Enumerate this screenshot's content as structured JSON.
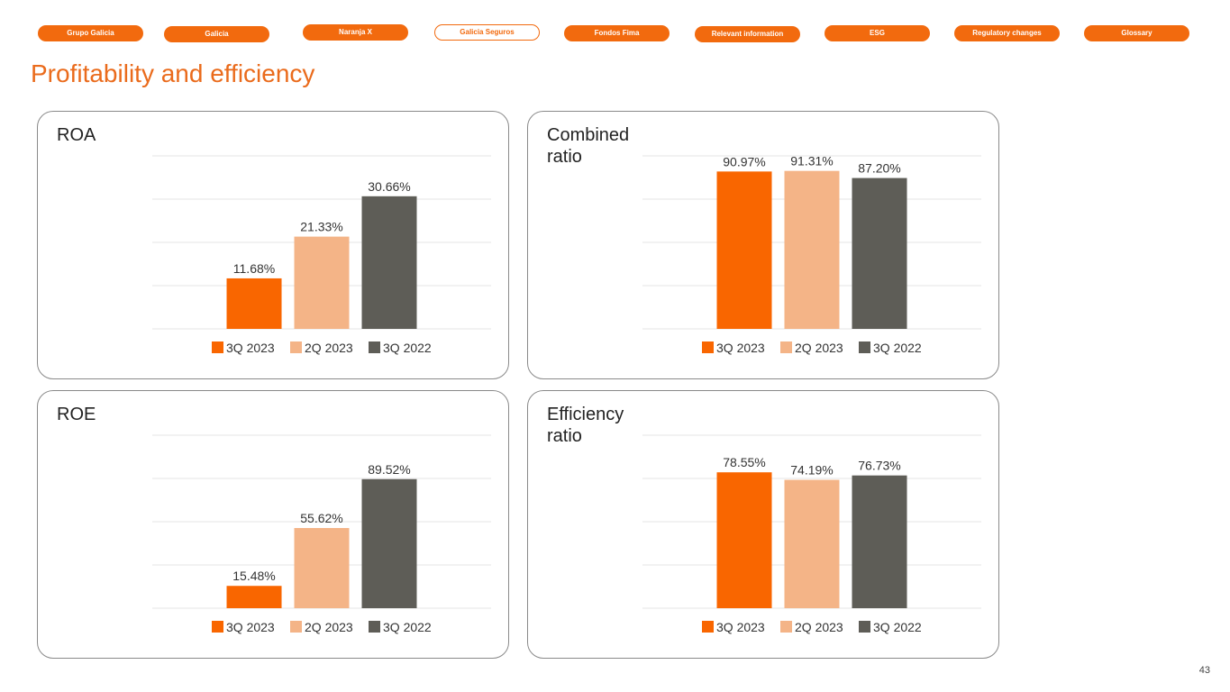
{
  "nav": {
    "items": [
      {
        "label": "Grupo Galicia",
        "active": false
      },
      {
        "label": "Galicia",
        "active": false
      },
      {
        "label": "Naranja X",
        "active": false
      },
      {
        "label": "Galicia Seguros",
        "active": true
      },
      {
        "label": "Fondos Fima",
        "active": false
      },
      {
        "label": "Relevant information",
        "active": false
      },
      {
        "label": "ESG",
        "active": false
      },
      {
        "label": "Regulatory changes",
        "active": false
      },
      {
        "label": "Glossary",
        "active": false
      }
    ]
  },
  "page": {
    "title": "Profitability and efficiency",
    "number": "43"
  },
  "colors": {
    "accent": "#f26a0e",
    "series": [
      "#f96600",
      "#f4b487",
      "#5e5d57"
    ],
    "gridline": "#e6e6e6",
    "panel_border": "#8a8a8a"
  },
  "chart_data": [
    {
      "type": "bar",
      "title": "ROA",
      "categories": [
        "3Q 2023",
        "2Q 2023",
        "3Q 2022"
      ],
      "values": [
        11.68,
        21.33,
        30.66
      ],
      "value_labels": [
        "11.68%",
        "21.33%",
        "30.66%"
      ],
      "ylim": [
        0,
        40
      ],
      "grid": true,
      "legend": "bottom"
    },
    {
      "type": "bar",
      "title": "Combined ratio",
      "categories": [
        "3Q 2023",
        "2Q 2023",
        "3Q 2022"
      ],
      "values": [
        90.97,
        91.31,
        87.2
      ],
      "value_labels": [
        "90.97%",
        "91.31%",
        "87.20%"
      ],
      "ylim": [
        0,
        100
      ],
      "grid": true,
      "legend": "bottom"
    },
    {
      "type": "bar",
      "title": "ROE",
      "categories": [
        "3Q 2023",
        "2Q 2023",
        "3Q 2022"
      ],
      "values": [
        15.48,
        55.62,
        89.52
      ],
      "value_labels": [
        "15.48%",
        "55.62%",
        "89.52%"
      ],
      "ylim": [
        0,
        120
      ],
      "grid": true,
      "legend": "bottom"
    },
    {
      "type": "bar",
      "title": "Efficiency ratio",
      "categories": [
        "3Q 2023",
        "2Q 2023",
        "3Q 2022"
      ],
      "values": [
        78.55,
        74.19,
        76.73
      ],
      "value_labels": [
        "78.55%",
        "74.19%",
        "76.73%"
      ],
      "ylim": [
        0,
        100
      ],
      "grid": true,
      "legend": "bottom"
    }
  ]
}
